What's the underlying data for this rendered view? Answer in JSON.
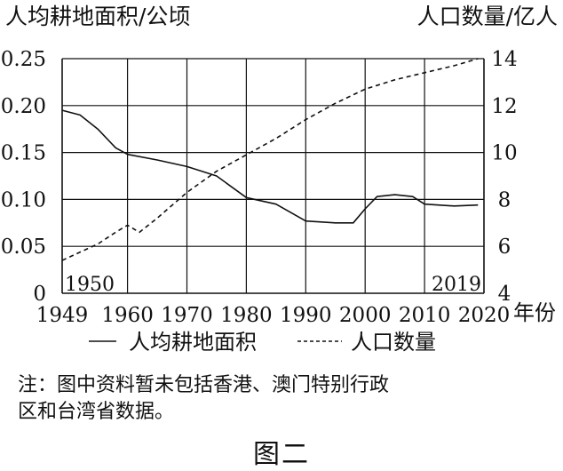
{
  "chart_data": {
    "type": "line",
    "left_axis_title": "人均耕地面积/公顷",
    "right_axis_title": "人口数量/亿人",
    "x_axis_unit": "年份",
    "x_range": [
      1949,
      2020
    ],
    "x_ticks": [
      1949,
      1960,
      1970,
      1980,
      1990,
      2000,
      2010,
      2020
    ],
    "x_tick_labels": [
      "1949",
      "1960",
      "1970",
      "1980",
      "1990",
      "2000",
      "2010",
      "2020"
    ],
    "y_left_range": [
      0,
      0.25
    ],
    "y_left_ticks": [
      0,
      0.05,
      0.1,
      0.15,
      0.2,
      0.25
    ],
    "y_left_tick_labels": [
      "0",
      "0.05",
      "0.10",
      "0.15",
      "0.20",
      "0.25"
    ],
    "y_right_range": [
      4,
      14
    ],
    "y_right_ticks": [
      4,
      6,
      8,
      10,
      12,
      14
    ],
    "y_right_tick_labels": [
      "4",
      "6",
      "8",
      "10",
      "12",
      "14"
    ],
    "grid": true,
    "start_label": "1950",
    "end_label": "2019",
    "series": [
      {
        "name": "人均耕地面积",
        "axis": "left",
        "style": "solid",
        "x": [
          1949,
          1952,
          1955,
          1958,
          1960,
          1965,
          1970,
          1975,
          1980,
          1985,
          1990,
          1995,
          1998,
          2000,
          2002,
          2005,
          2008,
          2010,
          2015,
          2019
        ],
        "y": [
          0.195,
          0.19,
          0.175,
          0.155,
          0.148,
          0.142,
          0.135,
          0.125,
          0.102,
          0.095,
          0.077,
          0.075,
          0.075,
          0.09,
          0.103,
          0.105,
          0.103,
          0.095,
          0.093,
          0.094
        ]
      },
      {
        "name": "人口数量",
        "axis": "right",
        "style": "dashed",
        "x": [
          1949,
          1955,
          1958,
          1960,
          1962,
          1965,
          1970,
          1975,
          1980,
          1985,
          1990,
          1995,
          2000,
          2005,
          2010,
          2015,
          2019
        ],
        "y": [
          5.4,
          6.1,
          6.6,
          6.9,
          6.6,
          7.2,
          8.3,
          9.2,
          9.9,
          10.6,
          11.4,
          12.1,
          12.7,
          13.1,
          13.4,
          13.7,
          14.0
        ]
      }
    ],
    "legend": [
      {
        "symbol": "—",
        "label": "人均耕地面积"
      },
      {
        "symbol": "- - - -",
        "label": "人口数量"
      }
    ]
  },
  "note": {
    "line1": "注：图中资料暂未包括香港、澳门特别行政",
    "line2": "区和台湾省数据。"
  },
  "figure_caption": "图二"
}
